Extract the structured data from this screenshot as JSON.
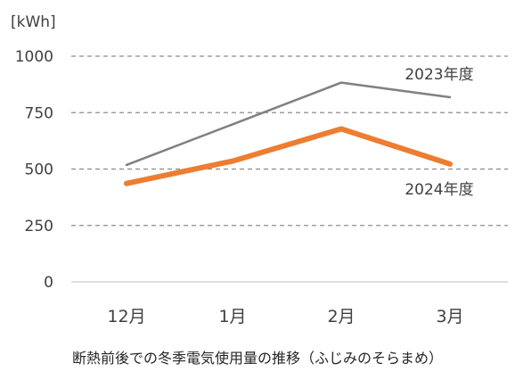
{
  "chart_data": {
    "type": "line",
    "unit_label": "[kWh]",
    "categories": [
      "12月",
      "1月",
      "2月",
      "3月"
    ],
    "ylim": [
      0,
      1000
    ],
    "yticks": [
      0,
      250,
      500,
      750,
      1000
    ],
    "grid": true,
    "series": [
      {
        "name": "2023年度",
        "values": [
          518,
          698,
          883,
          818
        ],
        "color": "#808080"
      },
      {
        "name": "2024年度",
        "values": [
          436,
          535,
          678,
          522
        ],
        "color": "#ED7D31"
      }
    ],
    "caption": "断熱前後での冬季電気使用量の推移（ふじみのそらまめ）"
  }
}
